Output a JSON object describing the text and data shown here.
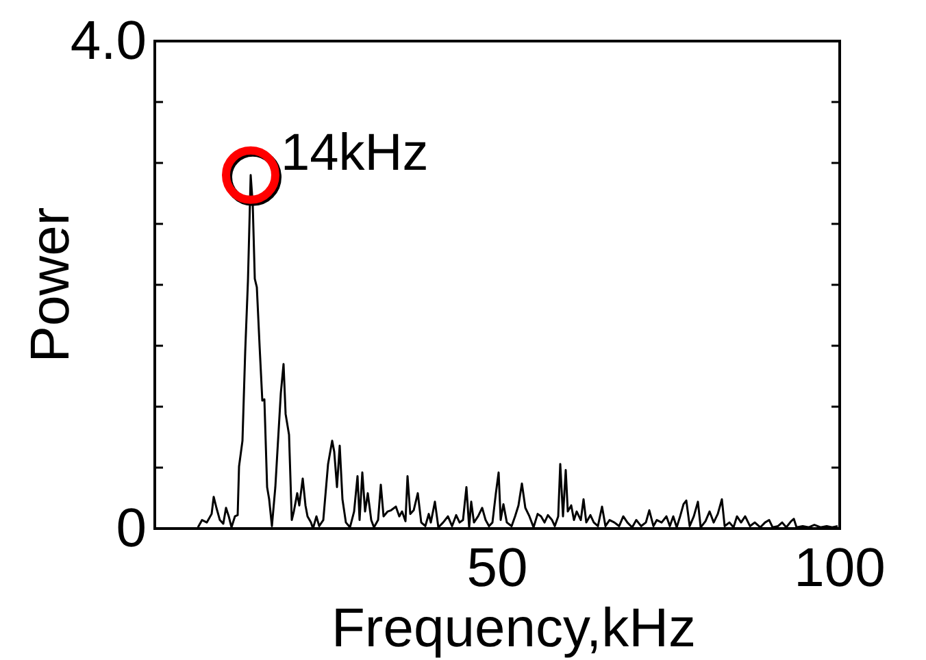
{
  "chart_data": {
    "type": "line",
    "xlabel": "Frequency,kHz",
    "ylabel": "Power",
    "xlim": [
      0,
      100
    ],
    "xticks": [
      50,
      100
    ],
    "ylim": [
      0,
      4
    ],
    "yticks": [
      0,
      {
        "value": 0.5,
        "label": null
      },
      {
        "value": 1,
        "label": null
      },
      {
        "value": 1.5,
        "label": null
      },
      {
        "value": 2,
        "label": null
      },
      {
        "value": 2.5,
        "label": null
      },
      {
        "value": 3,
        "label": null
      },
      {
        "value": 3.5,
        "label": null
      },
      {
        "value": 4,
        "label": "4.0"
      }
    ],
    "grid": false,
    "marker": "none",
    "line_style": "solid",
    "annotations": [
      {
        "text": "14kHz",
        "x": 14,
        "y": 2.9
      }
    ],
    "series": [
      {
        "color": "#000000",
        "x": [
          6.3,
          6.9,
          7.6,
          8.3,
          8.6,
          9.0,
          9.5,
          10.0,
          10.4,
          10.8,
          11.2,
          11.7,
          12.1,
          12.3,
          12.8,
          13.2,
          13.6,
          14.0,
          14.3,
          14.6,
          14.9,
          15.3,
          15.7,
          16.0,
          16.4,
          16.7,
          17.1,
          17.6,
          17.9,
          18.4,
          18.8,
          19.1,
          19.6,
          20.0,
          20.3,
          20.8,
          21.1,
          21.6,
          22.0,
          22.3,
          22.8,
          23.1,
          23.6,
          24.0,
          24.6,
          25.3,
          25.9,
          26.2,
          26.6,
          27.0,
          27.4,
          27.9,
          28.5,
          29.1,
          29.6,
          29.9,
          30.3,
          30.7,
          31.1,
          31.6,
          32.0,
          32.6,
          33.0,
          33.4,
          34.0,
          34.5,
          35.2,
          35.7,
          36.1,
          36.6,
          36.9,
          37.3,
          37.8,
          38.4,
          38.9,
          39.5,
          40.0,
          40.3,
          40.9,
          41.4,
          42.1,
          42.8,
          43.4,
          44.0,
          44.5,
          45.0,
          45.5,
          45.9,
          46.2,
          46.6,
          47.2,
          47.8,
          48.3,
          48.8,
          49.3,
          49.8,
          50.2,
          50.5,
          50.9,
          51.4,
          52.1,
          52.6,
          53.1,
          53.6,
          54.1,
          54.7,
          55.3,
          55.9,
          56.4,
          56.9,
          57.4,
          58.0,
          58.4,
          58.9,
          59.2,
          59.6,
          60.0,
          60.3,
          60.8,
          61.2,
          61.6,
          62.2,
          62.6,
          63.0,
          63.6,
          64.1,
          64.7,
          65.3,
          65.8,
          66.4,
          67.1,
          67.8,
          68.4,
          69.0,
          69.7,
          70.3,
          71.0,
          71.7,
          72.2,
          72.8,
          73.3,
          74.0,
          74.7,
          75.2,
          75.7,
          76.2,
          76.7,
          77.2,
          77.6,
          78.1,
          78.7,
          79.3,
          79.7,
          80.4,
          81.0,
          81.6,
          82.2,
          82.8,
          83.2,
          83.9,
          84.5,
          85.0,
          85.6,
          86.2,
          86.9,
          87.6,
          88.4,
          89.1,
          89.7,
          90.2,
          91.0,
          91.6,
          92.2,
          92.9,
          93.3,
          93.7,
          94.6,
          95.5,
          96.3,
          97.2,
          98.1,
          98.9,
          99.7
        ],
        "values": [
          0.01,
          0.07,
          0.05,
          0.12,
          0.26,
          0.17,
          0.07,
          0.04,
          0.17,
          0.1,
          0.01,
          0.1,
          0.11,
          0.51,
          0.72,
          1.45,
          2.03,
          2.9,
          2.66,
          2.05,
          1.98,
          1.5,
          1.05,
          1.06,
          0.34,
          0.24,
          0.02,
          0.34,
          0.63,
          1.11,
          1.35,
          0.94,
          0.77,
          0.07,
          0.14,
          0.29,
          0.19,
          0.41,
          0.19,
          0.1,
          0.05,
          0,
          0.1,
          0.02,
          0.07,
          0.53,
          0.72,
          0.63,
          0.34,
          0.68,
          0.24,
          0.05,
          0.01,
          0.14,
          0.43,
          0.07,
          0.46,
          0.14,
          0.29,
          0.07,
          0.01,
          0.07,
          0.36,
          0.1,
          0.14,
          0.15,
          0.18,
          0.1,
          0.14,
          0.06,
          0.43,
          0.12,
          0.15,
          0.29,
          0.05,
          0.02,
          0.12,
          0.05,
          0.22,
          0.01,
          0.05,
          0.1,
          0.02,
          0.11,
          0.05,
          0.07,
          0.34,
          0.01,
          0.22,
          0.05,
          0.1,
          0.17,
          0.07,
          0.02,
          0.05,
          0.29,
          0.46,
          0.07,
          0.2,
          0.05,
          0.02,
          0.1,
          0.19,
          0.37,
          0.17,
          0.1,
          0.01,
          0.12,
          0.1,
          0.05,
          0.11,
          0.07,
          0.02,
          0.1,
          0.53,
          0.1,
          0.48,
          0.14,
          0.19,
          0.07,
          0.14,
          0.07,
          0.24,
          0.05,
          0.11,
          0.05,
          0.02,
          0.18,
          0.02,
          0.07,
          0.05,
          0.02,
          0.1,
          0.05,
          0.01,
          0.07,
          0.02,
          0.05,
          0.15,
          0.02,
          0.07,
          0.05,
          0.1,
          0.02,
          0.1,
          0.01,
          0.1,
          0.2,
          0.23,
          0.02,
          0.1,
          0.22,
          0.01,
          0.06,
          0.14,
          0.05,
          0.12,
          0.24,
          0.02,
          0.05,
          0.01,
          0.1,
          0.05,
          0.1,
          0.02,
          0.05,
          0.01,
          0.05,
          0.07,
          0.01,
          0.02,
          0.05,
          0.01,
          0.06,
          0.08,
          0.01,
          0.02,
          0.01,
          0.03,
          0.01,
          0.02,
          0.01,
          0.02
        ]
      }
    ]
  }
}
